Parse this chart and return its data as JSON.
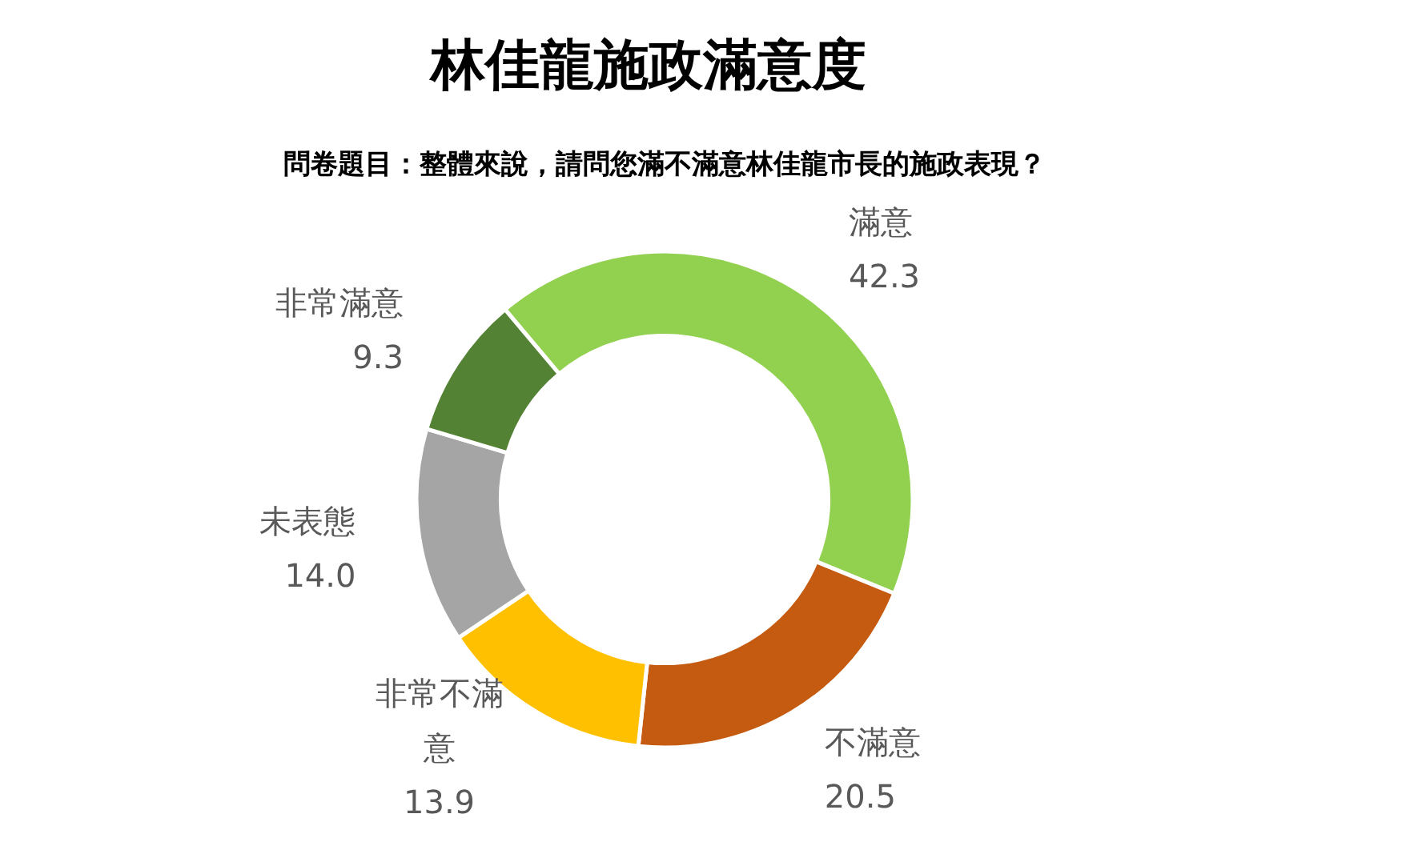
{
  "chart_data": {
    "type": "donut",
    "title": "林佳龍施政滿意度",
    "subtitle": "問卷題目：整體來說，請問您滿不滿意林佳龍市長的施政表現？",
    "categories": [
      "滿意",
      "不滿意",
      "非常不滿意",
      "未表態",
      "非常滿意"
    ],
    "values": [
      42.3,
      20.5,
      13.9,
      14.0,
      9.3
    ],
    "colors": [
      "#92d050",
      "#c55a11",
      "#ffc000",
      "#a5a5a5",
      "#548235"
    ],
    "value_labels": [
      "42.3",
      "20.5",
      "13.9",
      "14.0",
      "9.3"
    ]
  }
}
